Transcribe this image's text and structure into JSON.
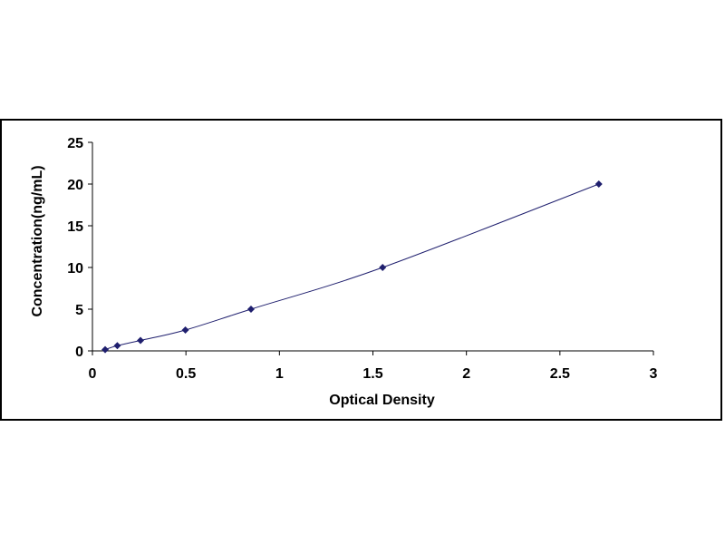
{
  "chart_data": {
    "type": "scatter",
    "title": "",
    "xlabel": "Optical Density",
    "ylabel": "Concentration(ng/mL)",
    "xlim": [
      0,
      3
    ],
    "ylim": [
      0,
      25
    ],
    "x_ticks": [
      "0",
      "0.5",
      "1",
      "1.5",
      "2",
      "2.5",
      "3"
    ],
    "y_ticks": [
      "0",
      "5",
      "10",
      "15",
      "20",
      "25"
    ],
    "grid": false,
    "legend": "none",
    "trendline": "smooth curve through points",
    "series": [
      {
        "marker": "diamond",
        "color": "#1f1f6e",
        "points": [
          {
            "x": 0.068,
            "y": 0.156
          },
          {
            "x": 0.133,
            "y": 0.625
          },
          {
            "x": 0.257,
            "y": 1.25
          },
          {
            "x": 0.497,
            "y": 2.5
          },
          {
            "x": 0.848,
            "y": 5
          },
          {
            "x": 1.552,
            "y": 10
          },
          {
            "x": 2.708,
            "y": 20
          }
        ]
      }
    ]
  }
}
